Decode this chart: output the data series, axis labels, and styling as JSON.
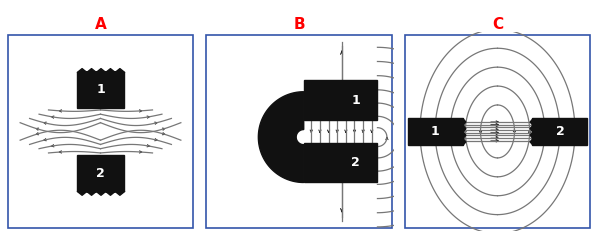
{
  "title_A": "A",
  "title_B": "B",
  "title_C": "C",
  "title_color": "#ff0000",
  "title_fontsize": 11,
  "bg_color": "#ffffff",
  "border_color": "#3355aa",
  "magnet_color": "#111111",
  "line_color": "#777777",
  "label_color": "#ffffff",
  "label_fontsize": 9,
  "arrow_color": "#222222"
}
